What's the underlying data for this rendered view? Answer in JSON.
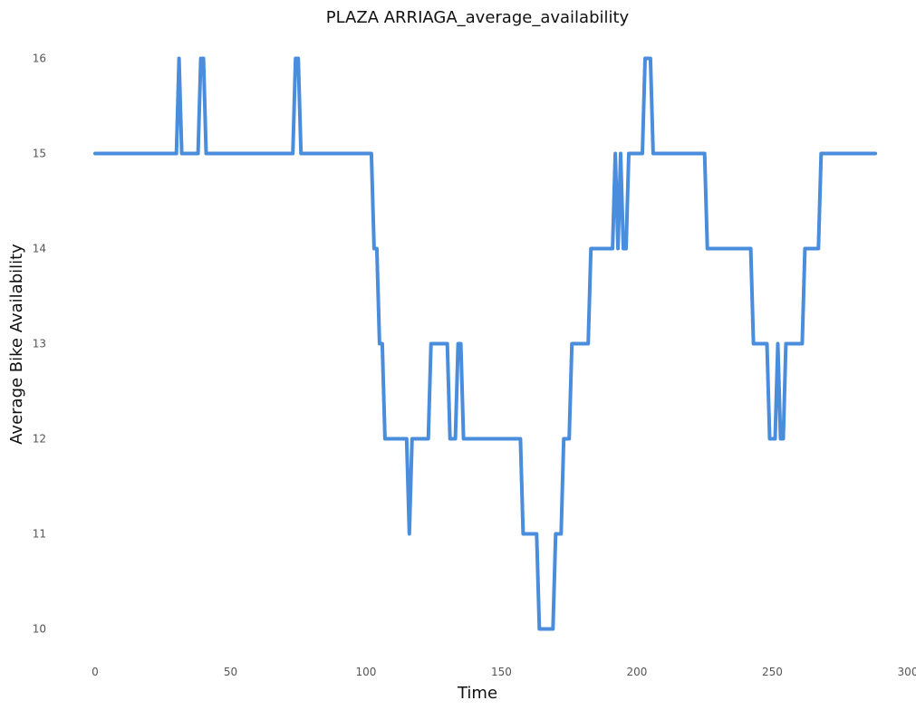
{
  "chart_data": {
    "type": "line",
    "title": "PLAZA ARRIAGA_average_availability",
    "xlabel": "Time",
    "ylabel": "Average Bike Availability",
    "xlim": [
      -5,
      300
    ],
    "ylim": [
      9.7,
      16.3
    ],
    "grid": false,
    "legend": "none",
    "line_color": "#4a8ddc",
    "x_ticks": [
      0,
      50,
      100,
      150,
      200,
      250,
      300
    ],
    "y_ticks": [
      10,
      11,
      12,
      13,
      14,
      15,
      16
    ],
    "series": [
      {
        "points": [
          [
            0,
            15
          ],
          [
            30,
            15
          ],
          [
            31,
            16
          ],
          [
            32,
            15
          ],
          [
            38,
            15
          ],
          [
            39,
            16
          ],
          [
            40,
            16
          ],
          [
            41,
            15
          ],
          [
            73,
            15
          ],
          [
            74,
            16
          ],
          [
            75,
            16
          ],
          [
            76,
            15
          ],
          [
            102,
            15
          ],
          [
            103,
            14
          ],
          [
            104,
            14
          ],
          [
            105,
            13
          ],
          [
            106,
            13
          ],
          [
            107,
            12
          ],
          [
            115,
            12
          ],
          [
            116,
            11
          ],
          [
            117,
            12
          ],
          [
            123,
            12
          ],
          [
            124,
            13
          ],
          [
            130,
            13
          ],
          [
            131,
            12
          ],
          [
            133,
            12
          ],
          [
            134,
            13
          ],
          [
            135,
            13
          ],
          [
            136,
            12
          ],
          [
            157,
            12
          ],
          [
            158,
            11
          ],
          [
            163,
            11
          ],
          [
            164,
            10
          ],
          [
            169,
            10
          ],
          [
            170,
            11
          ],
          [
            172,
            11
          ],
          [
            173,
            12
          ],
          [
            175,
            12
          ],
          [
            176,
            13
          ],
          [
            182,
            13
          ],
          [
            183,
            14
          ],
          [
            191,
            14
          ],
          [
            192,
            15
          ],
          [
            193,
            14
          ],
          [
            194,
            15
          ],
          [
            195,
            14
          ],
          [
            196,
            14
          ],
          [
            197,
            15
          ],
          [
            202,
            15
          ],
          [
            203,
            16
          ],
          [
            205,
            16
          ],
          [
            206,
            15
          ],
          [
            225,
            15
          ],
          [
            226,
            14
          ],
          [
            242,
            14
          ],
          [
            243,
            13
          ],
          [
            248,
            13
          ],
          [
            249,
            12
          ],
          [
            251,
            12
          ],
          [
            252,
            13
          ],
          [
            253,
            12
          ],
          [
            254,
            12
          ],
          [
            255,
            13
          ],
          [
            261,
            13
          ],
          [
            262,
            14
          ],
          [
            267,
            14
          ],
          [
            268,
            15
          ],
          [
            288,
            15
          ]
        ]
      }
    ]
  }
}
